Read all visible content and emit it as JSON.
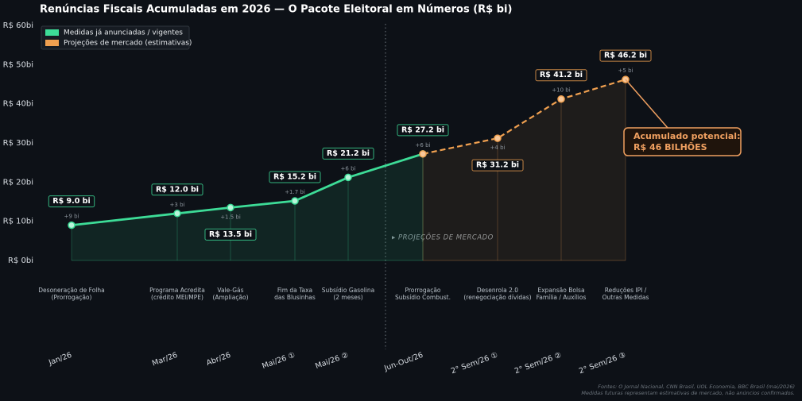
{
  "chart_data": {
    "type": "line",
    "title": "Renúncias Fiscais Acumuladas em 2026 — O Pacote Eleitoral em Números  (R$ bi)",
    "categories": [
      "Jan/26",
      "Mar/26",
      "Abr/26",
      "Mai/26 ①",
      "Mai/26 ②",
      "Jun-Out/26",
      "2° Sem/26 ①",
      "2° Sem/26 ②",
      "2° Sem/26 ③"
    ],
    "descriptions": [
      [
        "Desoneração de Folha",
        "(Prorrogação)"
      ],
      [
        "Programa Acredita",
        "(crédito MEI/MPE)"
      ],
      [
        "Vale-Gás",
        "(Ampliação)"
      ],
      [
        "Fim da Taxa",
        "das Blusinhas"
      ],
      [
        "Subsídio Gasolina",
        "(2 meses)"
      ],
      [
        "Prorrogação",
        "Subsídio Combust."
      ],
      [
        "Desenrola 2.0",
        "(renegociação dívidas)"
      ],
      [
        "Expansão Bolsa",
        "Família / Auxílios"
      ],
      [
        "Reduções IPI /",
        "Outras Medidas"
      ]
    ],
    "series": [
      {
        "name": "Medidas já anunciadas / vigentes",
        "color": "#3ddc97",
        "values": [
          9.0,
          12.0,
          13.5,
          15.2,
          21.2,
          27.2,
          null,
          null,
          null
        ],
        "value_labels": [
          "R$ 9.0 bi",
          "R$ 12.0 bi",
          "R$ 13.5 bi",
          "R$ 15.2 bi",
          "R$ 21.2 bi",
          "R$ 27.2 bi",
          null,
          null,
          null
        ]
      },
      {
        "name": "Projeções de mercado (estimativas)",
        "color": "#f0a050",
        "values": [
          null,
          null,
          null,
          null,
          null,
          27.2,
          31.2,
          41.2,
          46.2
        ],
        "value_labels": [
          null,
          null,
          null,
          null,
          null,
          null,
          "R$ 31.2 bi",
          "R$ 41.2 bi",
          "R$ 46.2 bi"
        ]
      }
    ],
    "increments": [
      9,
      3,
      1.5,
      1.7,
      6,
      6,
      4,
      10,
      5
    ],
    "increment_labels": [
      "+9 bi",
      "+3 bi",
      "+1.5 bi",
      "+1.7 bi",
      "+6 bi",
      "+6 bi",
      "+4 bi",
      "+10 bi",
      "+5 bi"
    ],
    "ylim": [
      0,
      60
    ],
    "yticks": [
      {
        "value": 0,
        "label": "R$ 0bi"
      },
      {
        "value": 10,
        "label": "R$ 10bi"
      },
      {
        "value": 20,
        "label": "R$ 20bi"
      },
      {
        "value": 30,
        "label": "R$ 30bi"
      },
      {
        "value": 40,
        "label": "R$ 40bi"
      },
      {
        "value": 50,
        "label": "R$ 50bi"
      },
      {
        "value": 60,
        "label": "R$ 60bi"
      }
    ],
    "grid": false,
    "legend": "upper left",
    "projection_note": "▸  PROJEÇÕES DE MERCADO",
    "callout": [
      "Acumulado potencial:",
      "R$ 46 BILHÕES"
    ],
    "sources": [
      "Fontes: O Jornal Nacional, CNN Brasil, UOL Economia, BBC Brasil (mai/2026)",
      "Medidas futuras representam estimativas de mercado, não anúncios confirmados."
    ]
  }
}
